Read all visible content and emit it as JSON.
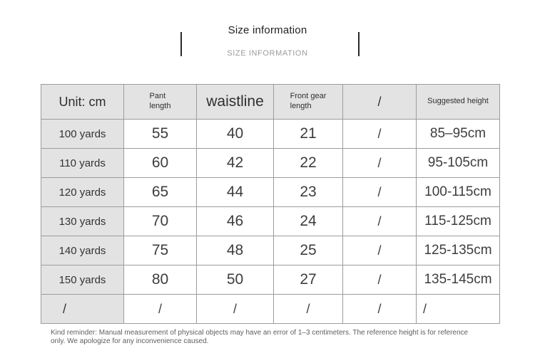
{
  "header": {
    "title": "Size information",
    "subtitle": "SIZE INFORMATION"
  },
  "table": {
    "columns": [
      {
        "key": "unit",
        "label": "Unit: cm",
        "size": "lg"
      },
      {
        "key": "pant-length",
        "label": "Pant\nlength",
        "size": "sm"
      },
      {
        "key": "waistline",
        "label": "waistline",
        "size": "xl"
      },
      {
        "key": "front-gear-length",
        "label": "Front gear\nlength",
        "size": "sm"
      },
      {
        "key": "slash",
        "label": "/",
        "size": "lg"
      },
      {
        "key": "suggested-height",
        "label": "Suggested height",
        "size": "sm"
      }
    ],
    "rows": [
      {
        "cells": [
          "100 yards",
          "55",
          "40",
          "21",
          "/",
          "85–95cm"
        ]
      },
      {
        "cells": [
          "110 yards",
          "60",
          "42",
          "22",
          "/",
          "95-105cm"
        ]
      },
      {
        "cells": [
          "120 yards",
          "65",
          "44",
          "23",
          "/",
          "100-115cm"
        ]
      },
      {
        "cells": [
          "130 yards",
          "70",
          "46",
          "24",
          "/",
          "115-125cm"
        ]
      },
      {
        "cells": [
          "140 yards",
          "75",
          "48",
          "25",
          "/",
          "125-135cm"
        ]
      },
      {
        "cells": [
          "150 yards",
          "80",
          "50",
          "27",
          "/",
          "135-145cm"
        ]
      },
      {
        "cells": [
          "/",
          "/",
          "/",
          "/",
          "/",
          "/"
        ]
      }
    ]
  },
  "footer": {
    "note": "Kind reminder: Manual measurement of physical objects may have an error of 1–3 centimeters. The reference height is for reference\nonly. We apologize for any inconvenience caused."
  },
  "colors": {
    "cell_shade": "#e3e3e3",
    "table_border": "#9c9c9c",
    "title_text": "#222222",
    "subtitle_text": "#9b9b9b",
    "body_text": "#3d3d3d",
    "note_text": "#5f5f5f"
  }
}
